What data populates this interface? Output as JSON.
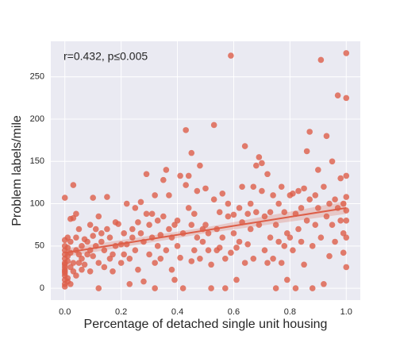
{
  "chart_data": {
    "type": "scatter",
    "annotation": "r=0.432, p≤0.005",
    "x_label": "Percentage of detached single unit housing",
    "y_label": "Problem labels/mile",
    "xlim": [
      -0.05,
      1.05
    ],
    "ylim": [
      -14,
      292
    ],
    "xticks": [
      {
        "value": 0,
        "label": "0.0"
      },
      0.2,
      0.4,
      0.6,
      0.8,
      {
        "value": 1,
        "label": "1.0"
      }
    ],
    "yticks": [
      0,
      50,
      100,
      150,
      200,
      250
    ],
    "grid": true,
    "color": "#dd5e48",
    "x": [
      0,
      0,
      0,
      0,
      0,
      0,
      0,
      0,
      0,
      0,
      0,
      0,
      0,
      0,
      0,
      0,
      0.01,
      0.01,
      0.01,
      0.01,
      0.01,
      0.01,
      0.02,
      0.02,
      0.02,
      0.02,
      0.02,
      0.03,
      0.03,
      0.03,
      0.03,
      0.04,
      0.04,
      0.04,
      0.04,
      0.05,
      0.05,
      0.05,
      0.06,
      0.06,
      0.06,
      0.07,
      0.07,
      0.08,
      0.08,
      0.09,
      0.09,
      0.09,
      0.1,
      0.1,
      0.1,
      0.11,
      0.11,
      0.12,
      0.12,
      0.12,
      0.13,
      0.13,
      0.14,
      0.14,
      0.15,
      0.15,
      0.16,
      0.16,
      0.17,
      0.17,
      0.18,
      0.18,
      0.19,
      0.2,
      0.2,
      0.21,
      0.21,
      0.22,
      0.22,
      0.23,
      0.23,
      0.24,
      0.24,
      0.25,
      0.25,
      0.26,
      0.26,
      0.27,
      0.27,
      0.28,
      0.28,
      0.29,
      0.29,
      0.3,
      0.3,
      0.31,
      0.31,
      0.32,
      0.32,
      0.32,
      0.33,
      0.33,
      0.34,
      0.34,
      0.35,
      0.35,
      0.36,
      0.36,
      0.37,
      0.37,
      0.38,
      0.38,
      0.39,
      0.39,
      0.4,
      0.4,
      0.41,
      0.41,
      0.42,
      0.42,
      0.43,
      0.43,
      0.44,
      0.44,
      0.45,
      0.45,
      0.45,
      0.46,
      0.46,
      0.47,
      0.47,
      0.48,
      0.48,
      0.49,
      0.49,
      0.5,
      0.5,
      0.51,
      0.51,
      0.52,
      0.52,
      0.53,
      0.53,
      0.54,
      0.54,
      0.55,
      0.55,
      0.56,
      0.56,
      0.57,
      0.57,
      0.58,
      0.58,
      0.59,
      0.59,
      0.6,
      0.6,
      0.61,
      0.61,
      0.62,
      0.62,
      0.63,
      0.63,
      0.64,
      0.64,
      0.65,
      0.65,
      0.66,
      0.66,
      0.67,
      0.67,
      0.68,
      0.68,
      0.69,
      0.69,
      0.7,
      0.7,
      0.71,
      0.71,
      0.72,
      0.72,
      0.73,
      0.73,
      0.74,
      0.74,
      0.75,
      0.75,
      0.76,
      0.76,
      0.77,
      0.77,
      0.78,
      0.78,
      0.79,
      0.79,
      0.8,
      0.8,
      0.81,
      0.81,
      0.82,
      0.82,
      0.83,
      0.83,
      0.84,
      0.84,
      0.85,
      0.85,
      0.86,
      0.86,
      0.87,
      0.87,
      0.88,
      0.88,
      0.89,
      0.89,
      0.9,
      0.9,
      0.91,
      0.91,
      0.92,
      0.92,
      0.93,
      0.93,
      0.94,
      0.94,
      0.95,
      0.95,
      0.96,
      0.96,
      0.97,
      0.97,
      0.98,
      0.98,
      0.99,
      0.99,
      0.99,
      1,
      1,
      1,
      1,
      1,
      1,
      1,
      1
    ],
    "values": [
      107,
      57,
      50,
      45,
      40,
      35,
      30,
      25,
      20,
      15,
      10,
      5,
      2,
      28,
      22,
      18,
      60,
      48,
      38,
      12,
      8,
      32,
      82,
      55,
      42,
      25,
      5,
      122,
      83,
      30,
      20,
      88,
      60,
      45,
      15,
      70,
      40,
      30,
      50,
      35,
      22,
      58,
      28,
      55,
      40,
      75,
      45,
      20,
      107,
      62,
      38,
      70,
      50,
      85,
      30,
      0,
      65,
      55,
      45,
      25,
      108,
      70,
      60,
      35,
      40,
      20,
      78,
      50,
      76,
      52,
      30,
      65,
      40,
      100,
      52,
      35,
      5,
      70,
      60,
      95,
      45,
      78,
      22,
      102,
      65,
      55,
      8,
      135,
      88,
      75,
      40,
      88,
      60,
      110,
      30,
      0,
      80,
      50,
      63,
      35,
      128,
      85,
      140,
      45,
      110,
      70,
      60,
      22,
      75,
      10,
      80,
      50,
      133,
      36,
      0,
      65,
      187,
      122,
      133,
      95,
      160,
      75,
      32,
      88,
      45,
      115,
      60,
      145,
      35,
      70,
      55,
      118,
      75,
      65,
      45,
      28,
      0,
      193,
      105,
      70,
      45,
      90,
      48,
      112,
      60,
      35,
      0,
      100,
      85,
      275,
      42,
      87,
      65,
      48,
      10,
      95,
      55,
      78,
      120,
      168,
      30,
      88,
      52,
      70,
      100,
      120,
      35,
      145,
      90,
      155,
      75,
      148,
      115,
      85,
      45,
      135,
      30,
      60,
      90,
      110,
      35,
      75,
      0,
      100,
      55,
      120,
      30,
      90,
      50,
      65,
      10,
      110,
      60,
      112,
      45,
      88,
      0,
      115,
      70,
      95,
      55,
      118,
      28,
      162,
      80,
      185,
      105,
      50,
      0,
      75,
      110,
      140,
      95,
      270,
      60,
      120,
      5,
      180,
      85,
      100,
      38,
      150,
      75,
      105,
      55,
      228,
      95,
      130,
      80,
      100,
      65,
      42,
      278,
      225,
      133,
      108,
      92,
      80,
      60,
      25
    ],
    "trend": {
      "x": [
        0,
        0.5,
        1
      ],
      "values": [
        42,
        68.5,
        95
      ],
      "lower": [
        37,
        65,
        88
      ],
      "upper": [
        47,
        72,
        103
      ]
    }
  }
}
